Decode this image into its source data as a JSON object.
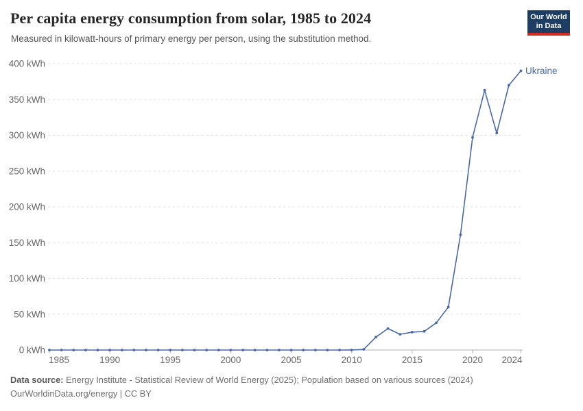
{
  "header": {
    "title": "Per capita energy consumption from solar, 1985 to 2024",
    "subtitle": "Measured in kilowatt-hours of primary energy per person, using the substitution method."
  },
  "logo": {
    "line1": "Our World",
    "line2": "in Data"
  },
  "chart_data": {
    "type": "line",
    "x": [
      1985,
      1986,
      1987,
      1988,
      1989,
      1990,
      1991,
      1992,
      1993,
      1994,
      1995,
      1996,
      1997,
      1998,
      1999,
      2000,
      2001,
      2002,
      2003,
      2004,
      2005,
      2006,
      2007,
      2008,
      2009,
      2010,
      2011,
      2012,
      2013,
      2014,
      2015,
      2016,
      2017,
      2018,
      2019,
      2020,
      2021,
      2022,
      2023,
      2024
    ],
    "series": [
      {
        "name": "Ukraine",
        "values": [
          0,
          0,
          0,
          0,
          0,
          0,
          0,
          0,
          0,
          0,
          0,
          0,
          0,
          0,
          0,
          0,
          0,
          0,
          0,
          0,
          0,
          0,
          0,
          0,
          0,
          0.1,
          1,
          18,
          30,
          22,
          25,
          26,
          38,
          60,
          161,
          297,
          363,
          303,
          370,
          390
        ]
      }
    ],
    "title": "Per capita energy consumption from solar, 1985 to 2024",
    "xlabel": "",
    "ylabel": "",
    "xlim": [
      1985,
      2024
    ],
    "ylim": [
      0,
      400
    ],
    "yticks": [
      0,
      50,
      100,
      150,
      200,
      250,
      300,
      350,
      400
    ],
    "ytick_suffix": " kWh",
    "xticks": [
      1985,
      1990,
      1995,
      2000,
      2005,
      2010,
      2015,
      2020,
      2024
    ],
    "grid": true,
    "legend_position": "end-of-line",
    "end_label": "Ukraine"
  },
  "colors": {
    "line": "#4868a8",
    "grid": "#dddddd",
    "axis": "#b0b0b0",
    "tick_text": "#666666",
    "logo_bg": "#1d3d63",
    "logo_stripe": "#d42b21",
    "title_text": "#262626",
    "subtitle_text": "#555555"
  },
  "footer": {
    "source_label": "Data source:",
    "source_text": " Energy Institute - Statistical Review of World Energy (2025); Population based on various sources (2024)",
    "line2": "OurWorldinData.org/energy | CC BY"
  }
}
